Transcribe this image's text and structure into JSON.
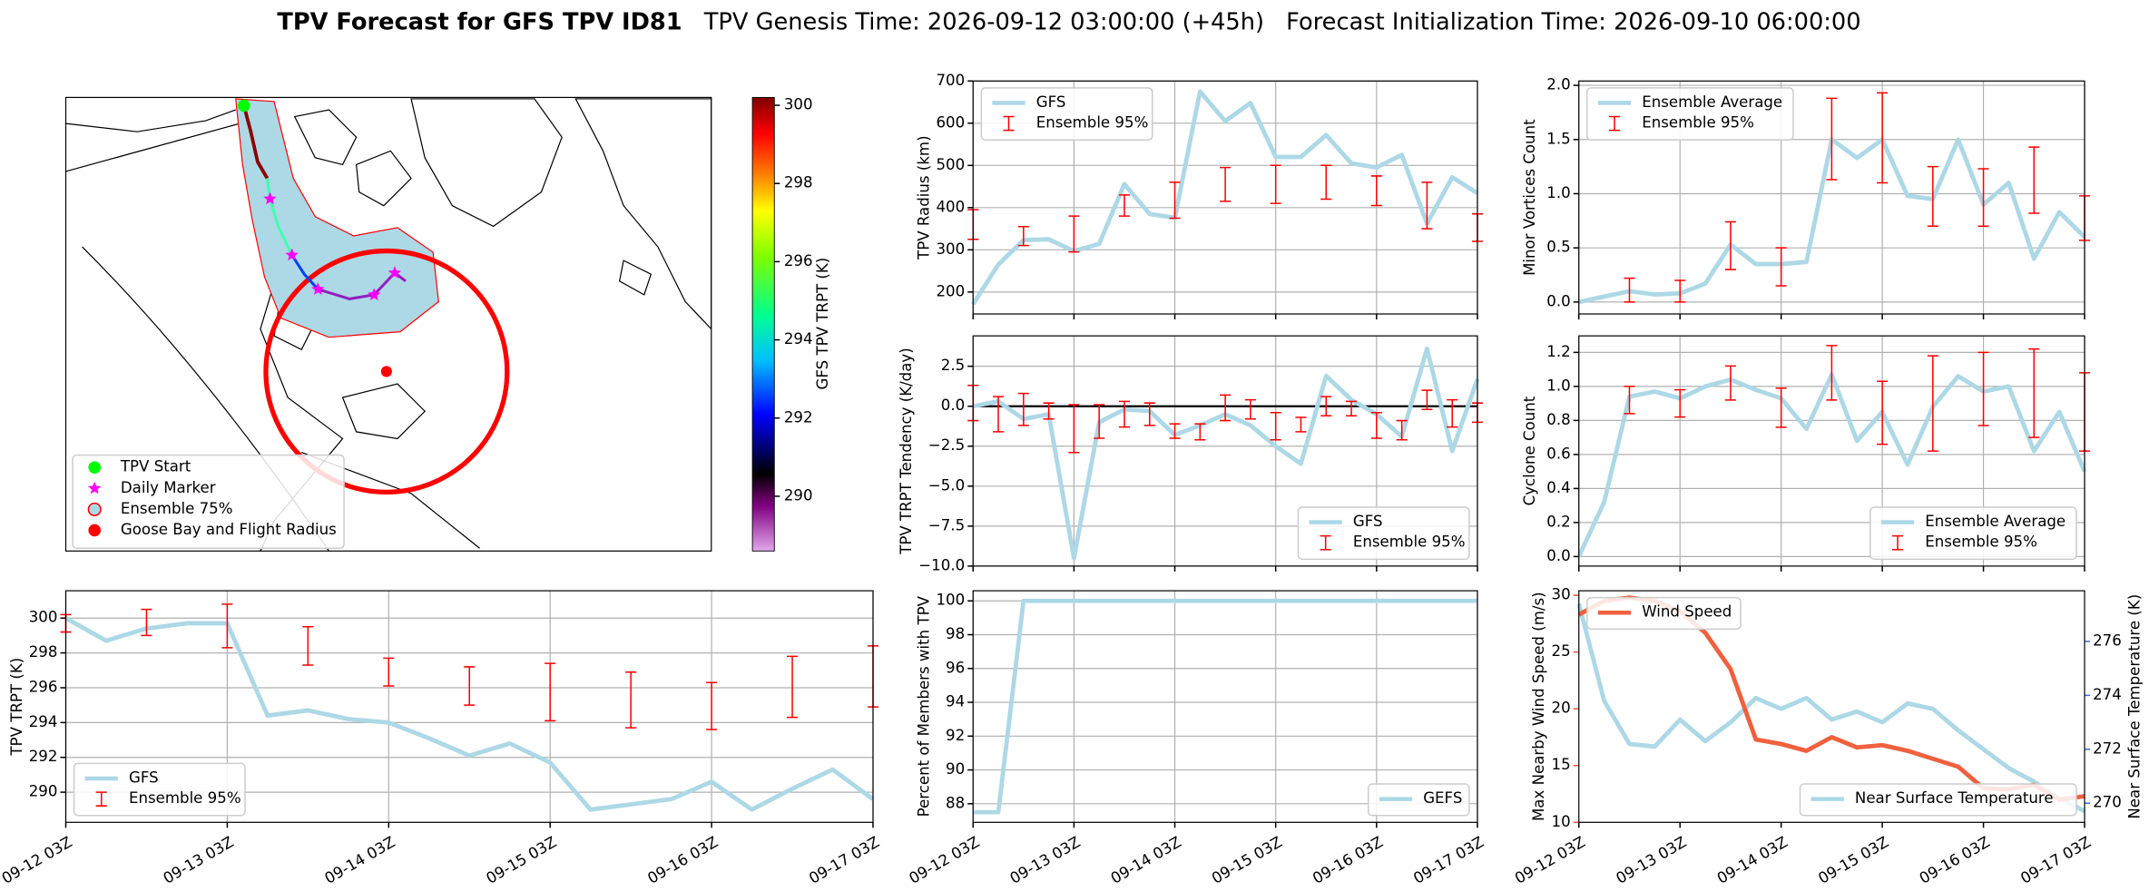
{
  "header": {
    "title": "TPV Forecast for GFS TPV ID81",
    "genesis": "TPV Genesis Time: 2026-09-12 03:00:00 (+45h)",
    "init": "Forecast Initialization Time: 2026-09-10 06:00:00"
  },
  "time": {
    "x": [
      "09-12 03Z",
      "09-12 09Z",
      "09-12 15Z",
      "09-12 21Z",
      "09-13 03Z",
      "09-13 09Z",
      "09-13 15Z",
      "09-13 21Z",
      "09-14 03Z",
      "09-14 09Z",
      "09-14 15Z",
      "09-14 21Z",
      "09-15 03Z",
      "09-15 09Z",
      "09-15 15Z",
      "09-15 21Z",
      "09-16 03Z",
      "09-16 09Z",
      "09-16 15Z",
      "09-16 21Z",
      "09-17 03Z"
    ],
    "xticks": [
      "09-12 03Z",
      "09-13 03Z",
      "09-14 03Z",
      "09-15 03Z",
      "09-16 03Z",
      "09-17 03Z"
    ]
  },
  "chart_data": [
    {
      "type": "map",
      "legend": [
        {
          "label": "TPV Start",
          "color": "#00ff00",
          "marker": "circle"
        },
        {
          "label": "Daily Marker",
          "color": "#ff00ff",
          "marker": "star"
        },
        {
          "label": "Ensemble 75%",
          "color": "#add8e6",
          "marker": "ring"
        },
        {
          "label": "Goose Bay and Flight Radius",
          "color": "#ff0000",
          "marker": "circle"
        }
      ],
      "colorbar": {
        "label": "GFS TPV TRPT (K)",
        "lim": [
          288.6,
          300.2
        ],
        "ticks": [
          290,
          292,
          294,
          296,
          298,
          300
        ]
      }
    },
    {
      "type": "line",
      "ylabel": "TPV Radius (km)",
      "ylim": [
        148,
        700
      ],
      "yticks": [
        200,
        300,
        400,
        500,
        600,
        700
      ],
      "grid": true,
      "legend": "upper left",
      "xticklabels": false,
      "series": [
        {
          "name": "GFS",
          "color": "#add8e6",
          "values": [
            171,
            265,
            323,
            325,
            297,
            314,
            456,
            385,
            376,
            675,
            605,
            648,
            520,
            520,
            572,
            505,
            495,
            525,
            362,
            472,
            434
          ]
        }
      ],
      "errorbars": {
        "name": "Ensemble 95%",
        "color": "#ff0000",
        "low": [
          325,
          null,
          310,
          null,
          295,
          null,
          380,
          null,
          375,
          null,
          415,
          null,
          410,
          null,
          420,
          null,
          405,
          null,
          350,
          null,
          320
        ],
        "high": [
          395,
          null,
          355,
          null,
          380,
          null,
          430,
          null,
          460,
          null,
          495,
          null,
          500,
          null,
          500,
          null,
          475,
          null,
          460,
          null,
          385
        ]
      }
    },
    {
      "type": "line",
      "ylabel": "TPV TRPT Tendency (K/day)",
      "ylim": [
        -10,
        4.4
      ],
      "yticks": [
        {
          "value": -10,
          "label": "−10.0"
        },
        {
          "value": -7.5,
          "label": "−7.5"
        },
        {
          "value": -5,
          "label": "−5.0"
        },
        {
          "value": -2.5,
          "label": "−2.5"
        },
        {
          "value": 0,
          "label": "0.0"
        },
        2.5
      ],
      "grid": true,
      "legend": "lower right",
      "xticklabels": false,
      "hline": 0,
      "series": [
        {
          "name": "GFS",
          "color": "#add8e6",
          "values": [
            0.0,
            0.3,
            -0.8,
            -0.5,
            -9.5,
            -1.0,
            -0.2,
            -0.3,
            -1.8,
            -1.2,
            -0.5,
            -1.2,
            -2.5,
            -3.6,
            1.9,
            0.4,
            -0.5,
            -1.9,
            3.6,
            -2.8,
            1.7
          ]
        }
      ],
      "errorbars": {
        "name": "Ensemble 95%",
        "color": "#ff0000",
        "low": [
          -0.9,
          -1.6,
          -1.2,
          -0.8,
          -2.9,
          -2.0,
          -1.3,
          -1.2,
          -2.0,
          -2.1,
          -0.9,
          -0.8,
          -2.1,
          -1.6,
          -0.6,
          -0.6,
          -2.0,
          -2.1,
          -0.2,
          -1.3,
          -1.0
        ],
        "high": [
          1.3,
          0.6,
          0.8,
          0.2,
          0.1,
          0.1,
          0.3,
          0.2,
          -1.1,
          -1.1,
          0.7,
          0.4,
          -0.4,
          -0.7,
          0.6,
          0.3,
          -0.4,
          -0.9,
          1.0,
          0.4,
          0.2
        ]
      }
    },
    {
      "type": "line",
      "ylabel": "Percent of Members with TPV",
      "ylim": [
        86.9,
        100.6
      ],
      "yticks": [
        88,
        90,
        92,
        94,
        96,
        98,
        100
      ],
      "grid": true,
      "legend": "lower right",
      "xticklabels": true,
      "series": [
        {
          "name": "GEFS",
          "color": "#add8e6",
          "values": [
            87.5,
            87.5,
            100,
            100,
            100,
            100,
            100,
            100,
            100,
            100,
            100,
            100,
            100,
            100,
            100,
            100,
            100,
            100,
            100,
            100,
            100
          ]
        }
      ]
    },
    {
      "type": "line",
      "ylabel": "Minor Vortices Count",
      "ylim": [
        -0.11,
        2.04
      ],
      "yticks": [
        {
          "value": 0,
          "label": "0.0"
        },
        0.5,
        {
          "value": 1,
          "label": "1.0"
        },
        1.5,
        {
          "value": 2,
          "label": "2.0"
        }
      ],
      "grid": true,
      "legend": "upper left",
      "xticklabels": false,
      "series": [
        {
          "name": "Ensemble Average",
          "color": "#add8e6",
          "values": [
            0.0,
            0.05,
            0.1,
            0.07,
            0.08,
            0.17,
            0.53,
            0.35,
            0.35,
            0.37,
            1.5,
            1.33,
            1.5,
            0.98,
            0.95,
            1.5,
            0.9,
            1.1,
            0.4,
            0.83,
            0.6
          ]
        }
      ],
      "errorbars": {
        "name": "Ensemble 95%",
        "color": "#ff0000",
        "low": [
          null,
          null,
          0,
          null,
          0,
          null,
          0.3,
          null,
          0.15,
          null,
          1.13,
          null,
          1.1,
          null,
          0.7,
          null,
          0.7,
          null,
          0.82,
          null,
          0.57
        ],
        "high": [
          null,
          null,
          0.22,
          null,
          0.2,
          null,
          0.74,
          null,
          0.5,
          null,
          1.88,
          null,
          1.93,
          null,
          1.25,
          null,
          1.23,
          null,
          1.43,
          null,
          0.98
        ]
      }
    },
    {
      "type": "line",
      "ylabel": "Cyclone Count",
      "ylim": [
        -0.056,
        1.297
      ],
      "yticks": [
        {
          "value": 0,
          "label": "0.0"
        },
        0.2,
        0.4,
        0.6,
        0.8,
        {
          "value": 1,
          "label": "1.0"
        },
        1.2
      ],
      "grid": true,
      "legend": "lower right",
      "xticklabels": false,
      "series": [
        {
          "name": "Ensemble Average",
          "color": "#add8e6",
          "values": [
            0.0,
            0.32,
            0.94,
            0.97,
            0.93,
            1.0,
            1.04,
            0.98,
            0.93,
            0.75,
            1.07,
            0.68,
            0.85,
            0.54,
            0.88,
            1.06,
            0.97,
            1.0,
            0.62,
            0.85,
            0.5
          ]
        }
      ],
      "errorbars": {
        "name": "Ensemble 95%",
        "color": "#ff0000",
        "low": [
          null,
          null,
          0.84,
          null,
          0.82,
          null,
          0.92,
          null,
          0.76,
          null,
          0.92,
          null,
          0.66,
          null,
          0.62,
          null,
          0.77,
          null,
          0.7,
          null,
          0.62
        ],
        "high": [
          null,
          null,
          1.0,
          null,
          0.98,
          null,
          1.12,
          null,
          0.99,
          null,
          1.24,
          null,
          1.03,
          null,
          1.18,
          null,
          1.2,
          null,
          1.22,
          null,
          1.08
        ]
      }
    },
    {
      "type": "line",
      "ylabel": "TPV TRPT (K)",
      "ylim": [
        288.27,
        301.57
      ],
      "yticks": [
        290,
        292,
        294,
        296,
        298,
        300
      ],
      "grid": true,
      "legend": "lower left",
      "xticklabels": true,
      "series": [
        {
          "name": "GFS",
          "color": "#add8e6",
          "values": [
            300.0,
            298.7,
            299.4,
            299.7,
            299.7,
            294.4,
            294.7,
            294.2,
            294.0,
            293.1,
            292.1,
            292.8,
            291.7,
            289.0,
            289.3,
            289.6,
            290.6,
            289.0,
            290.2,
            291.3,
            289.6
          ]
        }
      ],
      "errorbars": {
        "name": "Ensemble 95%",
        "color": "#ff0000",
        "low": [
          299.2,
          null,
          299.0,
          null,
          298.3,
          null,
          297.3,
          null,
          296.1,
          null,
          295.0,
          null,
          294.1,
          null,
          293.7,
          null,
          293.6,
          null,
          294.3,
          null,
          294.9
        ],
        "high": [
          300.2,
          null,
          300.5,
          null,
          300.8,
          null,
          299.5,
          null,
          297.7,
          null,
          297.2,
          null,
          297.4,
          null,
          296.9,
          null,
          296.3,
          null,
          297.8,
          null,
          298.4
        ]
      }
    },
    {
      "type": "line",
      "ylabel": "Max Nearby Wind Speed (m/s)",
      "y2label": "Near Surface Temperature (K)",
      "ycolor": "#e8553a",
      "y2color": "#4169e1",
      "ylim": [
        10,
        30.4
      ],
      "yticks": [
        10,
        15,
        20,
        25,
        30
      ],
      "y2lim": [
        269.29,
        277.88
      ],
      "y2ticks": [
        270,
        272,
        274,
        276
      ],
      "grid": false,
      "xticklabels": true,
      "series": [
        {
          "name": "Near Surface Temperature",
          "color": "#add8e6",
          "axis": "y2",
          "legend": "lower right",
          "values": [
            277.4,
            273.8,
            272.2,
            272.1,
            273.1,
            272.3,
            273.0,
            273.9,
            273.5,
            273.9,
            273.1,
            273.4,
            273.0,
            273.7,
            273.5,
            272.7,
            272.0,
            271.3,
            270.8,
            270.2,
            269.7
          ]
        },
        {
          "name": "Wind Speed",
          "color": "#f0603e",
          "legend": "upper left",
          "values": [
            28.3,
            29.5,
            29.8,
            29.5,
            28.6,
            26.7,
            23.5,
            17.3,
            16.9,
            16.3,
            17.5,
            16.6,
            16.8,
            16.3,
            15.6,
            14.9,
            13.0,
            12.9,
            13.3,
            12.0,
            12.3
          ]
        }
      ]
    }
  ]
}
